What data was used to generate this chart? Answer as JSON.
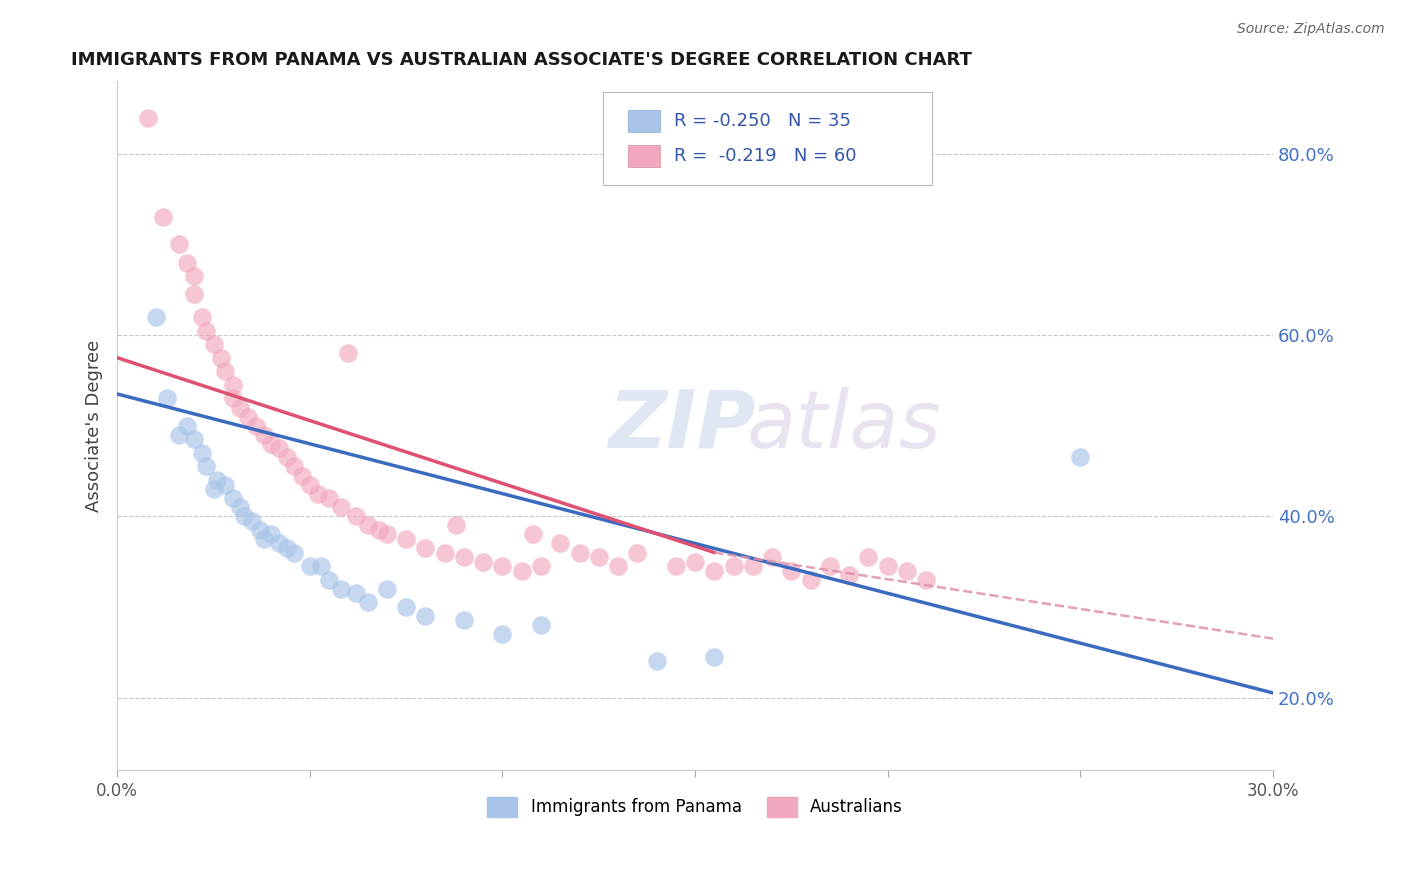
{
  "title": "IMMIGRANTS FROM PANAMA VS AUSTRALIAN ASSOCIATE'S DEGREE CORRELATION CHART",
  "source": "Source: ZipAtlas.com",
  "ylabel": "Associate's Degree",
  "color_blue": "#a8c4e8",
  "color_pink": "#f2a8bc",
  "line_color_blue": "#3a6bbf",
  "line_color_pink": "#e05070",
  "line_color_pink_dash": "#e090a8",
  "xmin": 0.0,
  "xmax": 0.3,
  "ymin": 0.12,
  "ymax": 0.88,
  "ytick_positions": [
    0.2,
    0.4,
    0.6,
    0.8
  ],
  "xtick_positions": [
    0.0,
    0.05,
    0.1,
    0.15,
    0.2,
    0.25,
    0.3
  ],
  "blue_scatter": [
    [
      0.01,
      0.62
    ],
    [
      0.013,
      0.53
    ],
    [
      0.016,
      0.49
    ],
    [
      0.018,
      0.5
    ],
    [
      0.02,
      0.485
    ],
    [
      0.022,
      0.47
    ],
    [
      0.023,
      0.455
    ],
    [
      0.025,
      0.43
    ],
    [
      0.026,
      0.44
    ],
    [
      0.028,
      0.435
    ],
    [
      0.03,
      0.42
    ],
    [
      0.032,
      0.41
    ],
    [
      0.033,
      0.4
    ],
    [
      0.035,
      0.395
    ],
    [
      0.037,
      0.385
    ],
    [
      0.038,
      0.375
    ],
    [
      0.04,
      0.38
    ],
    [
      0.042,
      0.37
    ],
    [
      0.044,
      0.365
    ],
    [
      0.046,
      0.36
    ],
    [
      0.05,
      0.345
    ],
    [
      0.053,
      0.345
    ],
    [
      0.055,
      0.33
    ],
    [
      0.058,
      0.32
    ],
    [
      0.062,
      0.315
    ],
    [
      0.065,
      0.305
    ],
    [
      0.07,
      0.32
    ],
    [
      0.075,
      0.3
    ],
    [
      0.08,
      0.29
    ],
    [
      0.09,
      0.285
    ],
    [
      0.1,
      0.27
    ],
    [
      0.11,
      0.28
    ],
    [
      0.14,
      0.24
    ],
    [
      0.155,
      0.245
    ],
    [
      0.25,
      0.465
    ]
  ],
  "pink_scatter": [
    [
      0.008,
      0.84
    ],
    [
      0.012,
      0.73
    ],
    [
      0.016,
      0.7
    ],
    [
      0.018,
      0.68
    ],
    [
      0.02,
      0.665
    ],
    [
      0.02,
      0.645
    ],
    [
      0.022,
      0.62
    ],
    [
      0.023,
      0.605
    ],
    [
      0.025,
      0.59
    ],
    [
      0.027,
      0.575
    ],
    [
      0.028,
      0.56
    ],
    [
      0.03,
      0.545
    ],
    [
      0.03,
      0.53
    ],
    [
      0.032,
      0.52
    ],
    [
      0.034,
      0.51
    ],
    [
      0.036,
      0.5
    ],
    [
      0.038,
      0.49
    ],
    [
      0.04,
      0.48
    ],
    [
      0.042,
      0.475
    ],
    [
      0.044,
      0.465
    ],
    [
      0.046,
      0.455
    ],
    [
      0.048,
      0.445
    ],
    [
      0.05,
      0.435
    ],
    [
      0.052,
      0.425
    ],
    [
      0.055,
      0.42
    ],
    [
      0.058,
      0.41
    ],
    [
      0.06,
      0.58
    ],
    [
      0.062,
      0.4
    ],
    [
      0.065,
      0.39
    ],
    [
      0.068,
      0.385
    ],
    [
      0.07,
      0.38
    ],
    [
      0.075,
      0.375
    ],
    [
      0.08,
      0.365
    ],
    [
      0.085,
      0.36
    ],
    [
      0.088,
      0.39
    ],
    [
      0.09,
      0.355
    ],
    [
      0.095,
      0.35
    ],
    [
      0.1,
      0.345
    ],
    [
      0.105,
      0.34
    ],
    [
      0.108,
      0.38
    ],
    [
      0.11,
      0.345
    ],
    [
      0.115,
      0.37
    ],
    [
      0.12,
      0.36
    ],
    [
      0.125,
      0.355
    ],
    [
      0.13,
      0.345
    ],
    [
      0.135,
      0.36
    ],
    [
      0.145,
      0.345
    ],
    [
      0.15,
      0.35
    ],
    [
      0.155,
      0.34
    ],
    [
      0.16,
      0.345
    ],
    [
      0.165,
      0.345
    ],
    [
      0.17,
      0.355
    ],
    [
      0.175,
      0.34
    ],
    [
      0.18,
      0.33
    ],
    [
      0.185,
      0.345
    ],
    [
      0.19,
      0.335
    ],
    [
      0.195,
      0.355
    ],
    [
      0.2,
      0.345
    ],
    [
      0.205,
      0.34
    ],
    [
      0.21,
      0.33
    ]
  ],
  "blue_line": [
    [
      0.0,
      0.535
    ],
    [
      0.3,
      0.205
    ]
  ],
  "pink_line_solid": [
    [
      0.0,
      0.575
    ],
    [
      0.155,
      0.36
    ]
  ],
  "pink_line_dash": [
    [
      0.155,
      0.36
    ],
    [
      0.3,
      0.265
    ]
  ]
}
